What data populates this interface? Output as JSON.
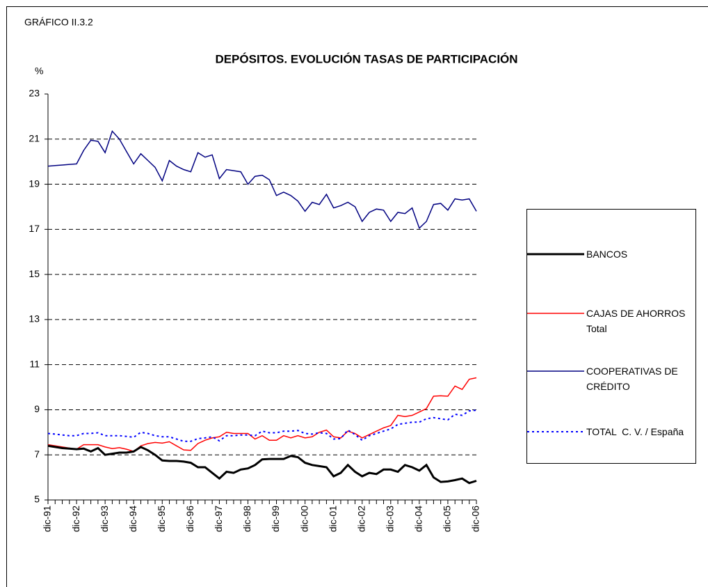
{
  "chart_data": {
    "type": "line",
    "label": "GRÁFICO II.3.2",
    "title": "DEPÓSITOS. EVOLUCIÓN TASAS DE PARTICIPACIÓN",
    "y_label": "%",
    "categories": [
      "dic-91",
      null,
      null,
      null,
      "dic-92",
      null,
      null,
      null,
      "dic-93",
      null,
      null,
      null,
      "dic-94",
      null,
      null,
      null,
      "dic-95",
      null,
      null,
      null,
      "dic-96",
      null,
      null,
      null,
      "dic-97",
      null,
      null,
      null,
      "dic-98",
      null,
      null,
      null,
      "dic-99",
      null,
      null,
      null,
      "dic-00",
      null,
      null,
      null,
      "dic-01",
      null,
      null,
      null,
      "dic-02",
      null,
      null,
      null,
      "dic-03",
      null,
      null,
      null,
      "dic-04",
      null,
      null,
      null,
      "dic-05",
      null,
      null,
      null,
      "dic-06"
    ],
    "series": [
      {
        "name": "BANCOS",
        "color": "#000000",
        "width": 3,
        "dash": false,
        "values": [
          7.4,
          7.35,
          7.3,
          7.28,
          7.25,
          7.28,
          7.15,
          7.3,
          7.0,
          7.05,
          7.1,
          7.1,
          7.15,
          7.35,
          7.2,
          7.0,
          6.75,
          6.73,
          6.73,
          6.7,
          6.65,
          6.45,
          6.45,
          6.2,
          5.95,
          6.25,
          6.2,
          6.35,
          6.4,
          6.55,
          6.8,
          6.82,
          6.82,
          6.82,
          6.95,
          6.9,
          6.65,
          6.55,
          6.5,
          6.45,
          6.05,
          6.2,
          6.55,
          6.25,
          6.05,
          6.2,
          6.15,
          6.35,
          6.35,
          6.25,
          6.55,
          6.45,
          6.3,
          6.55,
          6.0,
          5.8,
          5.82,
          5.88,
          5.95,
          5.75,
          5.85
        ]
      },
      {
        "name": "CAJAS DE AHORROS Total",
        "color": "#ff0000",
        "width": 1.5,
        "dash": false,
        "values": [
          7.45,
          7.4,
          7.35,
          7.3,
          7.25,
          7.45,
          7.45,
          7.45,
          7.35,
          7.28,
          7.32,
          7.25,
          7.15,
          7.4,
          7.5,
          7.55,
          7.52,
          7.58,
          7.4,
          7.22,
          7.2,
          7.5,
          7.65,
          7.75,
          7.8,
          8.0,
          7.95,
          7.95,
          7.95,
          7.7,
          7.85,
          7.65,
          7.65,
          7.85,
          7.75,
          7.85,
          7.75,
          7.8,
          8.0,
          8.1,
          7.8,
          7.75,
          8.05,
          7.95,
          7.75,
          7.9,
          8.05,
          8.2,
          8.3,
          8.75,
          8.7,
          8.75,
          8.9,
          9.05,
          9.6,
          9.62,
          9.6,
          10.05,
          9.9,
          10.35,
          10.42
        ]
      },
      {
        "name": "COOPERATIVAS DE CRÉDITO",
        "color": "#000080",
        "width": 1.5,
        "dash": false,
        "values": [
          19.8,
          19.83,
          19.85,
          19.88,
          19.9,
          20.5,
          20.95,
          20.9,
          20.4,
          21.35,
          21.0,
          20.45,
          19.9,
          20.35,
          20.05,
          19.75,
          19.15,
          20.05,
          19.8,
          19.65,
          19.55,
          20.4,
          20.2,
          20.3,
          19.25,
          19.65,
          19.6,
          19.55,
          19.0,
          19.35,
          19.4,
          19.2,
          18.5,
          18.65,
          18.5,
          18.25,
          17.8,
          18.2,
          18.1,
          18.55,
          17.95,
          18.05,
          18.2,
          18.0,
          17.35,
          17.75,
          17.9,
          17.85,
          17.35,
          17.75,
          17.7,
          17.95,
          17.05,
          17.35,
          18.1,
          18.15,
          17.85,
          18.35,
          18.3,
          18.35,
          17.8
        ]
      },
      {
        "name": "TOTAL  C. V. / España",
        "color": "#0000ff",
        "width": 2,
        "dash": true,
        "values": [
          7.95,
          7.92,
          7.88,
          7.85,
          7.85,
          7.95,
          7.95,
          7.98,
          7.85,
          7.85,
          7.85,
          7.82,
          7.78,
          8.0,
          7.95,
          7.85,
          7.8,
          7.8,
          7.7,
          7.6,
          7.6,
          7.72,
          7.75,
          7.8,
          7.62,
          7.85,
          7.85,
          7.88,
          7.88,
          7.85,
          8.05,
          7.98,
          7.98,
          8.05,
          8.05,
          8.08,
          7.95,
          7.92,
          7.98,
          7.95,
          7.7,
          7.72,
          8.1,
          7.9,
          7.65,
          7.85,
          7.95,
          8.05,
          8.15,
          8.35,
          8.4,
          8.45,
          8.45,
          8.6,
          8.65,
          8.6,
          8.55,
          8.8,
          8.75,
          8.95,
          8.98
        ]
      }
    ],
    "ylim": [
      5,
      23
    ],
    "yticks": [
      5,
      7,
      9,
      11,
      13,
      15,
      17,
      19,
      21,
      23
    ],
    "grid": true,
    "legend": "right"
  }
}
